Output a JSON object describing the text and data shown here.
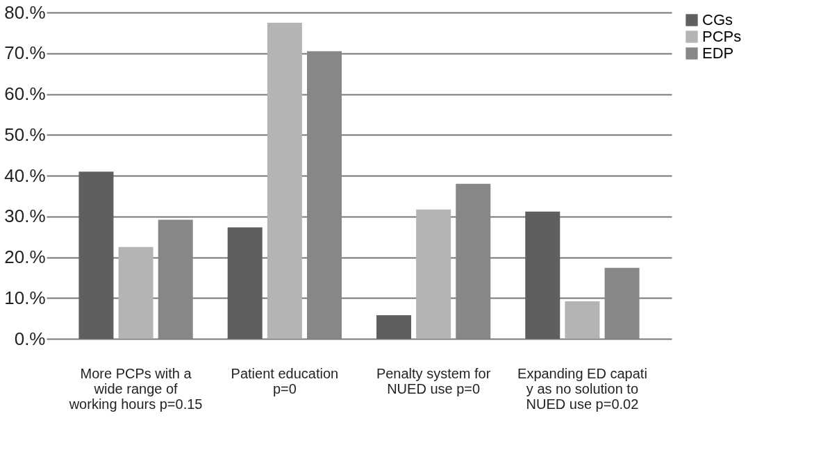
{
  "chart_data": {
    "type": "bar",
    "categories": [
      "More PCPs with a wide range of working hours p=0.15",
      "Patient education p=0",
      "Penalty system for NUED use p=0",
      "Expanding ED capati y as no solution to NUED use p=0.02"
    ],
    "series": [
      {
        "name": "CGs",
        "color": "#5f5f5f",
        "values": [
          41,
          27.3,
          5.8,
          31.2
        ]
      },
      {
        "name": "PCPs",
        "color": "#b4b4b4",
        "values": [
          22.5,
          77.5,
          31.7,
          9.2
        ]
      },
      {
        "name": "EDP",
        "color": "#878787",
        "values": [
          29.2,
          70.5,
          38,
          17.4
        ]
      }
    ],
    "ylim": [
      0,
      80
    ],
    "yticks": [
      {
        "value": 0,
        "label": "0.%"
      },
      {
        "value": 10,
        "label": "10.%"
      },
      {
        "value": 20,
        "label": "20.%"
      },
      {
        "value": 30,
        "label": "30.%"
      },
      {
        "value": 40,
        "label": "40.%"
      },
      {
        "value": 50,
        "label": "50.%"
      },
      {
        "value": 60,
        "label": "60.%"
      },
      {
        "value": 70,
        "label": "70.%"
      },
      {
        "value": 80,
        "label": "80.%"
      }
    ],
    "grid": "y",
    "legend": "right"
  }
}
